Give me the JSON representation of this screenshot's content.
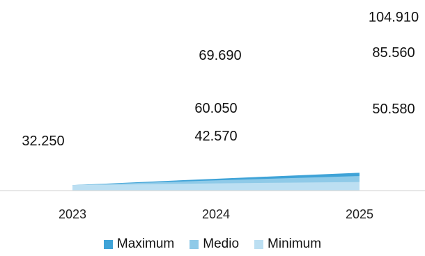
{
  "chart_data": {
    "type": "area",
    "stacked": false,
    "categories": [
      "2023",
      "2024",
      "2025"
    ],
    "series": [
      {
        "name": "Maximum",
        "values": [
          32250,
          69690,
          104910
        ],
        "labels": [
          "",
          "69.690",
          "104.910"
        ],
        "color": "#3fa3d7"
      },
      {
        "name": "Medio",
        "values": [
          32250,
          60050,
          85560
        ],
        "labels": [
          "",
          "60.050",
          "85.560"
        ],
        "color": "#8fcae8"
      },
      {
        "name": "Minimum",
        "values": [
          32250,
          42570,
          50580
        ],
        "labels": [
          "32.250",
          "42.570",
          "50.580"
        ],
        "color": "#bcdff2"
      }
    ],
    "ylim": [
      0,
      110000
    ],
    "grid": false,
    "legend": "bottom"
  }
}
